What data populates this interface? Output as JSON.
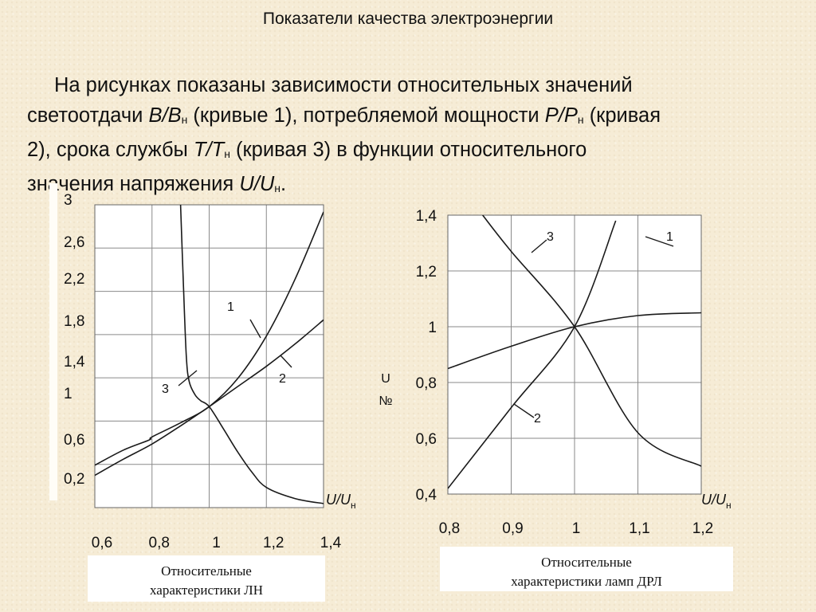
{
  "slide": {
    "title": "Показатели качества электроэнергии",
    "paragraph": [
      {
        "t": "На  рисунках показаны зависимости относительных значений",
        "i": false,
        "s": "",
        "indent": true
      },
      {
        "t": "светоотдачи ",
        "i": false,
        "s": "",
        "br": true
      },
      {
        "t": "B/B",
        "i": true,
        "s": ""
      },
      {
        "t": "",
        "i": false,
        "s": "н"
      },
      {
        "t": " (кривые 1), потребляемой мощности ",
        "i": false,
        "s": ""
      },
      {
        "t": "P/P",
        "i": true,
        "s": ""
      },
      {
        "t": "",
        "i": false,
        "s": "н"
      },
      {
        "t": " (кривая",
        "i": false,
        "s": ""
      },
      {
        "t": "2), срока службы ",
        "i": false,
        "s": "",
        "br": true
      },
      {
        "t": "T/T",
        "i": true,
        "s": ""
      },
      {
        "t": "",
        "i": false,
        "s": "н"
      },
      {
        "t": " (кривая 3) в функции относительного",
        "i": false,
        "s": ""
      },
      {
        "t": "значения напряжения  ",
        "i": false,
        "s": "",
        "br": true
      },
      {
        "t": "U/U",
        "i": true,
        "s": ""
      },
      {
        "t": "",
        "i": false,
        "s": "н"
      },
      {
        "t": ".",
        "i": false,
        "s": ""
      }
    ]
  },
  "chart_data": [
    {
      "type": "line",
      "caption": "Относительные характеристики ЛН",
      "xlabel": "U/U",
      "xlabel_sub": "н",
      "ylabel": "",
      "xlim": [
        0.6,
        1.4
      ],
      "ylim": [
        0,
        3
      ],
      "x_ticks": [
        0.6,
        0.8,
        1.0,
        1.2,
        1.4
      ],
      "x_tick_labels": [
        "0,6",
        "0,8",
        "1",
        "1,2",
        "1,4"
      ],
      "y_ticks": [
        0.2,
        0.6,
        1.0,
        1.4,
        1.8,
        2.2,
        2.6,
        3.0
      ],
      "y_tick_labels": [
        "0,2",
        "0,6",
        "1",
        "1,4",
        "1,8",
        "2,2",
        "2,6",
        "3"
      ],
      "grid": true,
      "series": [
        {
          "name": "1",
          "x": [
            0.6,
            0.7,
            0.79,
            0.8,
            0.9,
            1.0,
            1.1,
            1.2,
            1.3,
            1.4
          ],
          "y": [
            0.42,
            0.57,
            0.67,
            0.7,
            0.84,
            1.0,
            1.28,
            1.7,
            2.26,
            2.93
          ]
        },
        {
          "name": "2",
          "x": [
            0.6,
            0.7,
            0.8,
            0.9,
            1.0,
            1.1,
            1.2,
            1.3,
            1.4
          ],
          "y": [
            0.32,
            0.48,
            0.63,
            0.81,
            1.0,
            1.2,
            1.4,
            1.62,
            1.86
          ]
        },
        {
          "name": "3",
          "x": [
            0.9,
            0.91,
            0.92,
            0.93,
            0.95,
            0.97,
            1.0,
            1.05,
            1.1,
            1.15,
            1.2,
            1.3,
            1.4
          ],
          "y": [
            3.0,
            2.2,
            1.5,
            1.25,
            1.12,
            1.06,
            1.0,
            0.78,
            0.55,
            0.35,
            0.2,
            0.09,
            0.04
          ]
        }
      ],
      "curve_labels": [
        "1",
        "2",
        "3"
      ]
    },
    {
      "type": "line",
      "caption": "Относительные характеристики ламп ДРЛ",
      "xlabel": "U/U",
      "xlabel_sub": "н",
      "ylabel": "U",
      "ylabel_extra": "№",
      "xlim": [
        0.8,
        1.2
      ],
      "ylim": [
        0.4,
        1.4
      ],
      "x_ticks": [
        0.8,
        0.9,
        1.0,
        1.1,
        1.2
      ],
      "x_tick_labels": [
        "0,8",
        "0,9",
        "1",
        "1,1",
        "1,2"
      ],
      "y_ticks": [
        0.4,
        0.6,
        0.8,
        1.0,
        1.2,
        1.4
      ],
      "y_tick_labels": [
        "0,4",
        "0,6",
        "0,8",
        "1",
        "1,2",
        "1,4"
      ],
      "grid": true,
      "series": [
        {
          "name": "1",
          "x": [
            0.8,
            0.9,
            1.0,
            1.1,
            1.2
          ],
          "y": [
            0.85,
            0.93,
            1.0,
            1.04,
            1.05
          ]
        },
        {
          "name": "2",
          "x": [
            0.8,
            0.9,
            1.0,
            1.065
          ],
          "y": [
            0.42,
            0.71,
            1.0,
            1.38
          ]
        },
        {
          "name": "3",
          "x": [
            0.855,
            0.9,
            1.0,
            1.1,
            1.2
          ],
          "y": [
            1.4,
            1.27,
            1.0,
            0.62,
            0.5
          ]
        }
      ],
      "curve_labels": [
        "3",
        "1",
        "2"
      ]
    }
  ]
}
